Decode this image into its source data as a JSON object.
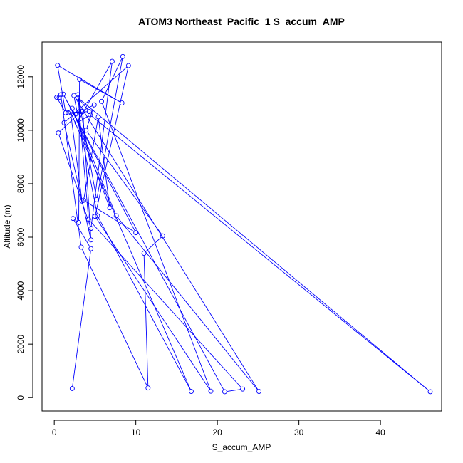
{
  "chart_data": {
    "type": "line",
    "title": "ATOM3 Northeast_Pacific_1 S_accum_AMP",
    "xlabel": "S_accum_AMP",
    "ylabel": "Altitude (m)",
    "xlim": [
      -1.5,
      47.5
    ],
    "ylim": [
      -500,
      13300
    ],
    "x_ticks": [
      0,
      10,
      20,
      30,
      40
    ],
    "x_tick_labels": [
      "0",
      "10",
      "20",
      "30",
      "40"
    ],
    "y_ticks": [
      0,
      2000,
      4000,
      6000,
      8000,
      10000,
      12000
    ],
    "y_tick_labels": [
      "0",
      "2000",
      "4000",
      "6000",
      "8000",
      "10000",
      "12000"
    ],
    "grid": false,
    "marker": "open-circle",
    "series": [
      {
        "color": "#0000ff",
        "x": [
          2.2,
          4.5,
          2.3,
          3.0,
          3.1,
          8.3,
          0.4,
          1.4,
          0.3,
          0.6,
          0.8,
          3.3,
          11.5,
          11.0,
          13.3,
          3.9,
          4.9,
          3.3,
          0.5,
          4.5,
          7.1,
          2.8,
          4.4,
          46.1,
          2.9,
          4.3,
          1.7,
          3.5,
          4.5,
          1.2,
          9.1,
          5.0,
          19.2,
          5.8,
          8.4,
          5.2,
          2.9,
          4.2,
          23.1,
          20.9,
          1.1,
          10.0,
          3.6,
          5.4,
          6.8,
          2.2,
          7.6,
          25.1,
          2.4,
          5.3,
          16.8,
          2.0,
          3.4
        ],
        "y": [
          340,
          5570,
          6700,
          6550,
          11900,
          11020,
          12430,
          10650,
          11230,
          11230,
          11330,
          5630,
          360,
          5400,
          6050,
          10000,
          10950,
          10700,
          9900,
          6330,
          12580,
          10270,
          10580,
          220,
          11220,
          10700,
          10650,
          10700,
          5900,
          10280,
          12420,
          6780,
          240,
          11080,
          12760,
          7400,
          11330,
          6670,
          320,
          220,
          11350,
          6170,
          7380,
          10500,
          7100,
          10820,
          6800,
          230,
          11300,
          6800,
          230,
          10680,
          7350
        ]
      }
    ]
  }
}
